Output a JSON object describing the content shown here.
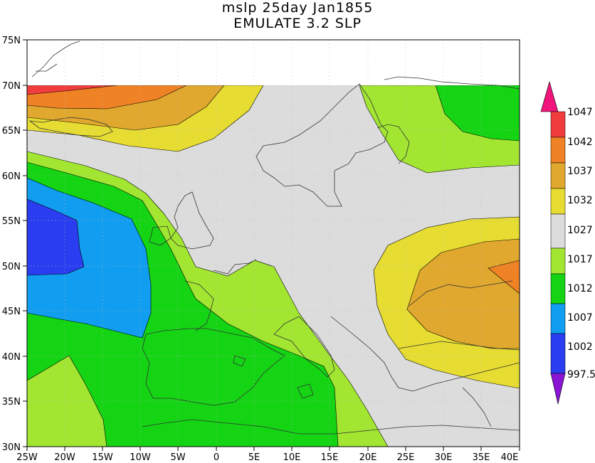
{
  "title": {
    "line1": "mslp 25day Jan1855",
    "line2": "EMULATE 3.2 SLP"
  },
  "axes": {
    "lat_labels": [
      "75N",
      "70N",
      "65N",
      "60N",
      "55N",
      "50N",
      "45N",
      "40N",
      "35N",
      "30N"
    ],
    "lon_labels": [
      "25W",
      "20W",
      "15W",
      "10W",
      "5W",
      "0",
      "5E",
      "10E",
      "15E",
      "20E",
      "25E",
      "30E",
      "35E",
      "40E"
    ],
    "lon_range": [
      -25,
      40
    ],
    "lat_range": [
      30,
      75
    ],
    "grid": "dotted"
  },
  "colorbar": {
    "labels": [
      "1047",
      "1042",
      "1037",
      "1032",
      "1027",
      "1017",
      "1012",
      "1007",
      "1002",
      "997.5"
    ]
  },
  "colors": {
    "deep_blue": "#2a3df0",
    "blue": "#119ef0",
    "green": "#14d414",
    "lime": "#a2e632",
    "gray": "#dcdcdc",
    "yellow": "#e6dc32",
    "gold": "#e0a82e",
    "orange": "#ef8224",
    "red": "#f03c3c",
    "magenta": "#f0147c",
    "purple": "#8a14d4"
  }
}
